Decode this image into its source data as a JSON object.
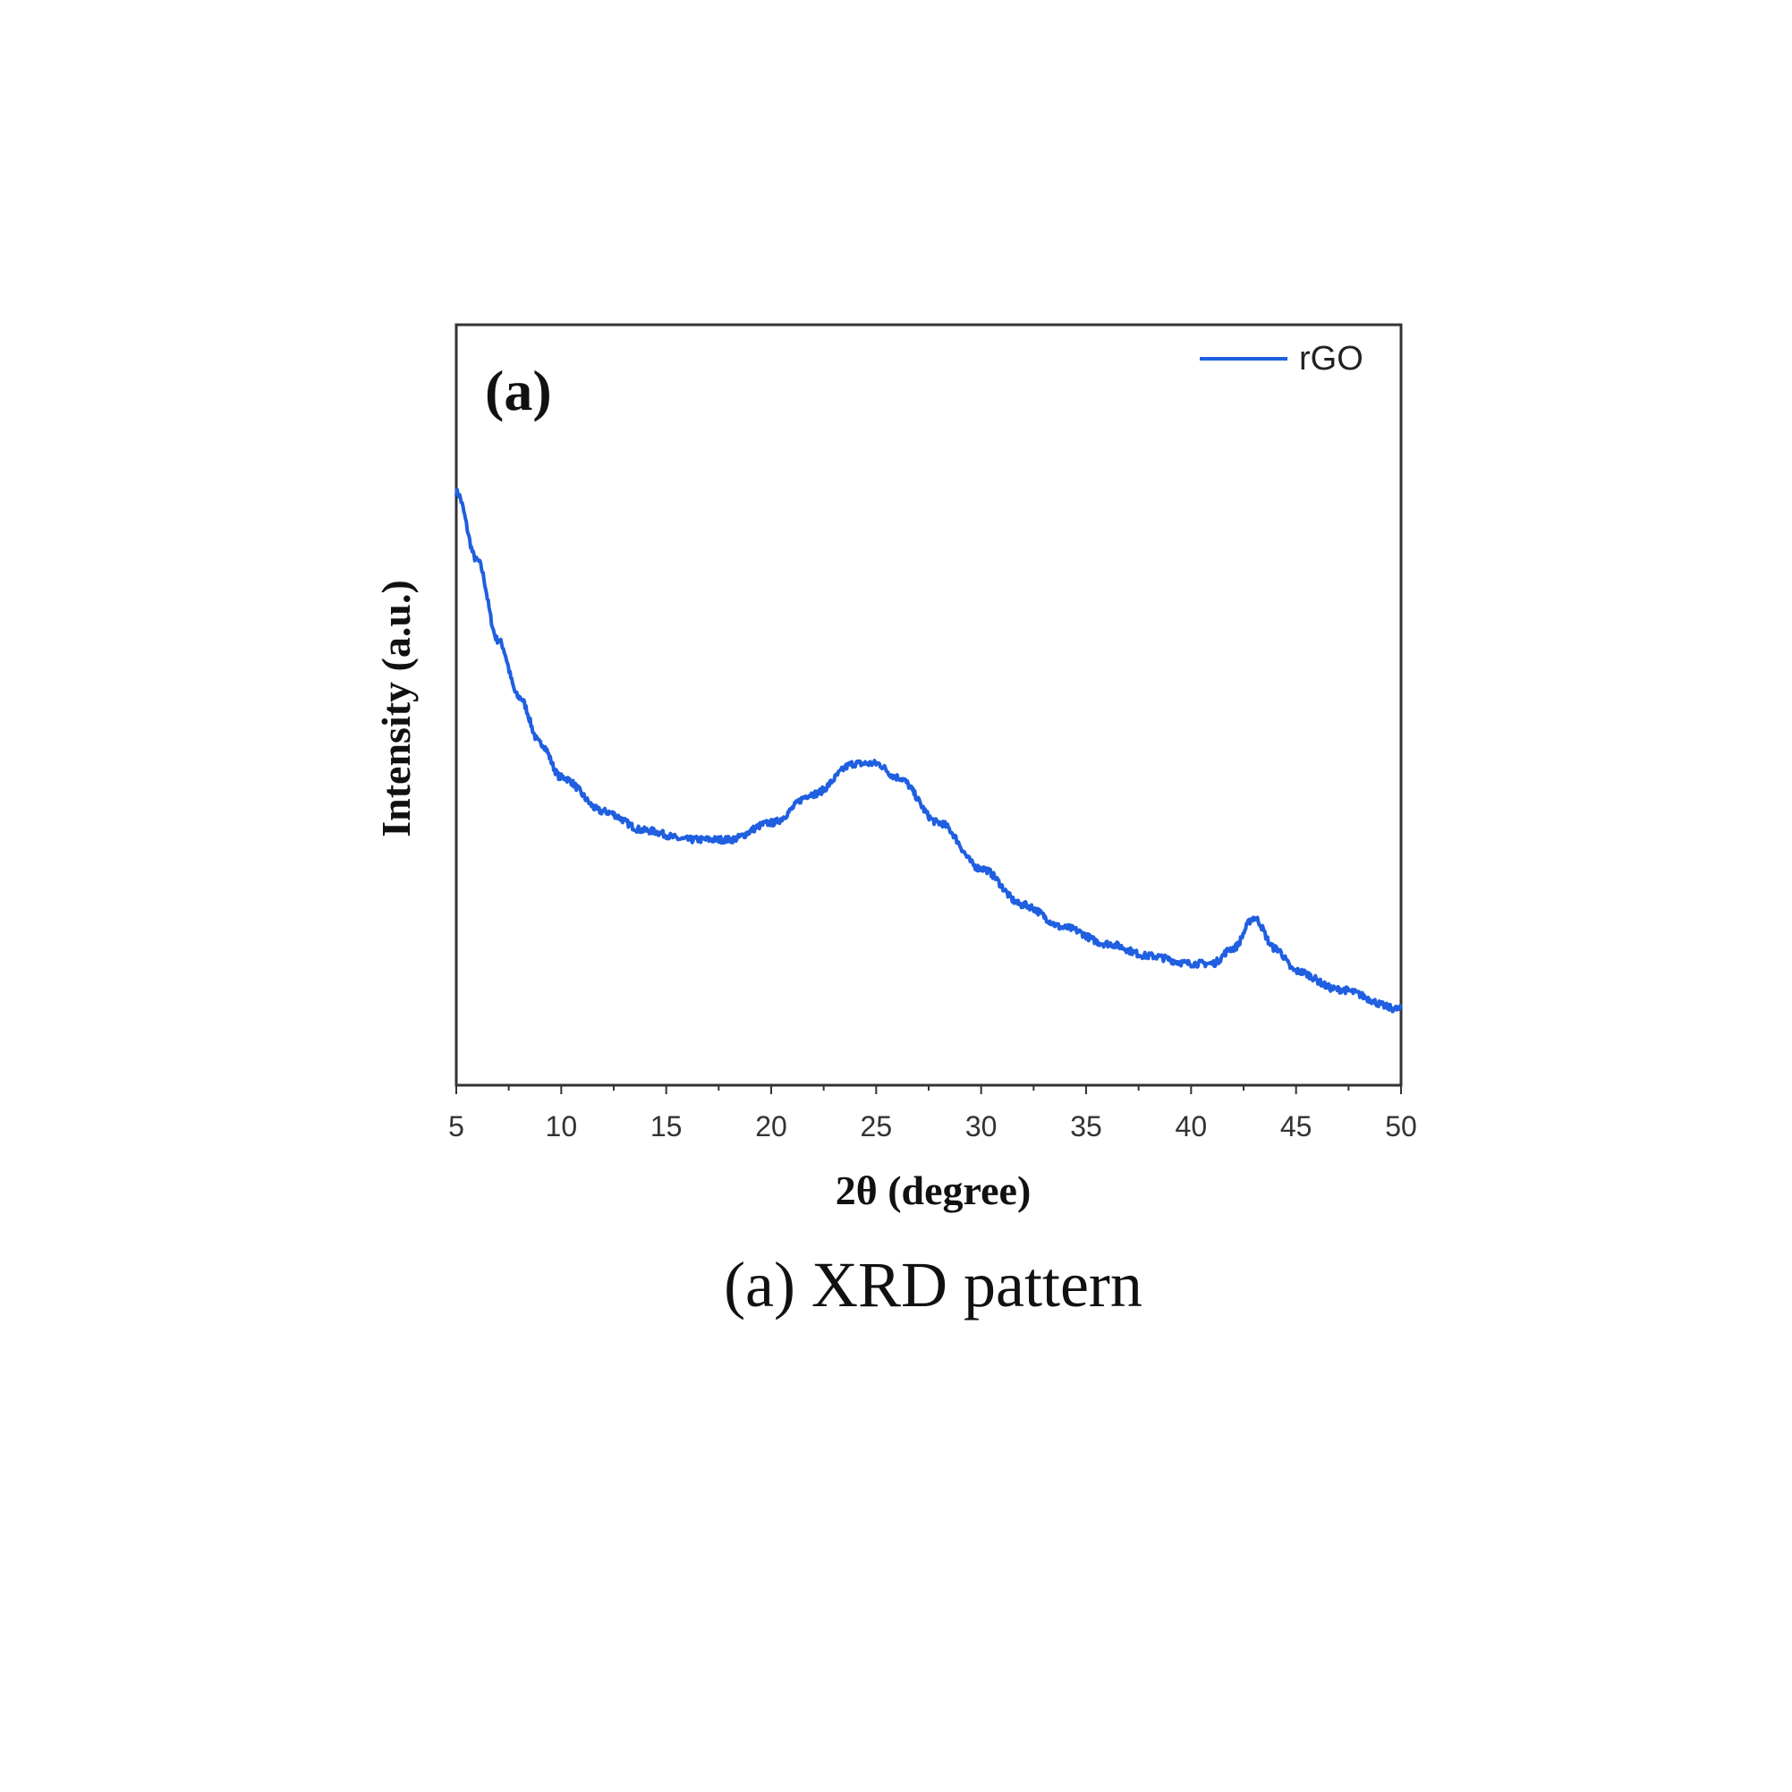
{
  "chart_data": {
    "type": "line",
    "panel_label": "(a)",
    "title": "",
    "caption": "(a) XRD pattern",
    "xlabel": "2θ (degree)",
    "ylabel": "Intensity (a.u.)",
    "xlim": [
      5,
      50
    ],
    "ylim": [
      0,
      100
    ],
    "xticks": [
      "5",
      "10",
      "15",
      "20",
      "25",
      "30",
      "35",
      "40",
      "45",
      "50"
    ],
    "grid": false,
    "legend_position": "top-right",
    "series": [
      {
        "name": "rGO",
        "color": "#1f5fe0",
        "x": [
          5,
          6,
          7,
          8,
          9,
          10,
          12,
          14,
          16,
          18,
          20,
          22,
          24,
          25,
          26,
          28,
          30,
          32,
          34,
          36,
          38,
          40,
          41,
          42,
          43,
          44,
          45,
          47,
          50
        ],
        "y": [
          78,
          69,
          58.5,
          51,
          45,
          40.5,
          36,
          33.5,
          32.3,
          32.3,
          34.5,
          38.3,
          42.3,
          42.3,
          40.5,
          34.5,
          28.5,
          23.7,
          20.7,
          18.6,
          17,
          16,
          16,
          18,
          22,
          18,
          15,
          12.6,
          10
        ]
      }
    ]
  }
}
